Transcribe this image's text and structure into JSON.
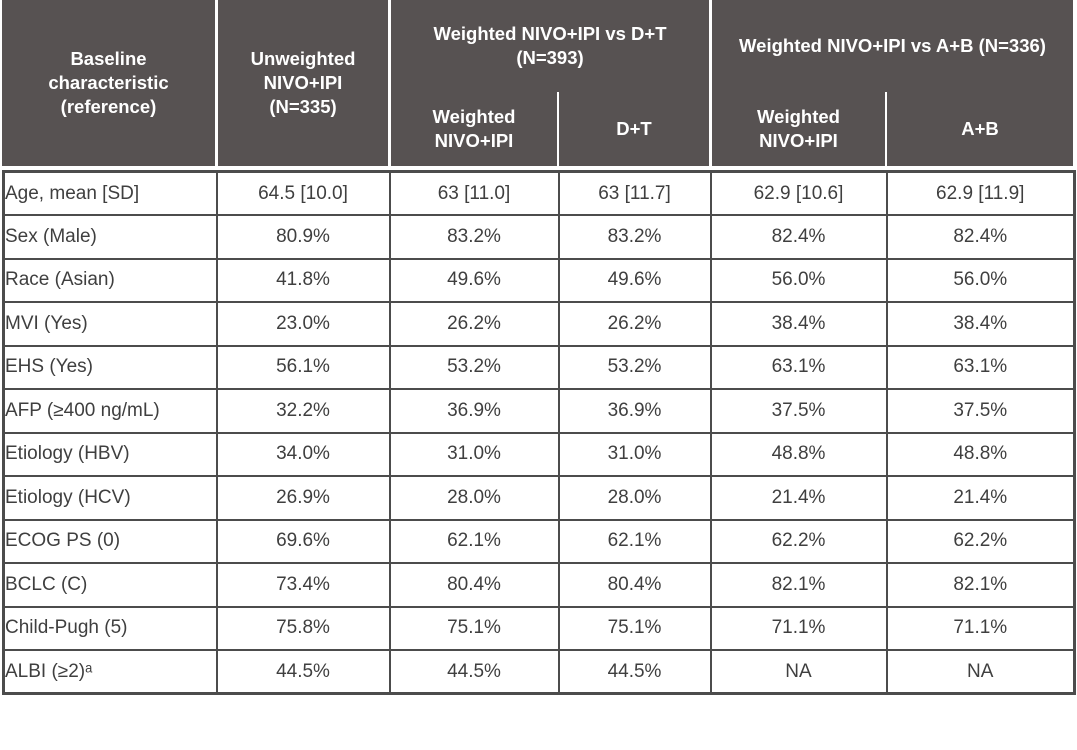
{
  "colors": {
    "header_bg": "#575252",
    "header_text": "#ffffff",
    "body_border": "#4c4c4c",
    "body_text": "#3f3f3f",
    "background": "#ffffff"
  },
  "table": {
    "columns": {
      "baseline": "Baseline characteristic (reference)",
      "unweighted": "Unweighted NIVO+IPI (N=335)",
      "group_dt": "Weighted NIVO+IPI vs D+T (N=393)",
      "group_ab": "Weighted NIVO+IPI vs A+B (N=336)",
      "sub_dt_weighted": "Weighted NIVO+IPI",
      "sub_dt": "D+T",
      "sub_ab_weighted": "Weighted NIVO+IPI",
      "sub_ab": "A+B"
    },
    "rows": [
      {
        "label": "Age, mean [SD]",
        "values": [
          "64.5 [10.0]",
          "63 [11.0]",
          "63 [11.7]",
          "62.9 [10.6]",
          "62.9 [11.9]"
        ]
      },
      {
        "label": "Sex (Male)",
        "values": [
          "80.9%",
          "83.2%",
          "83.2%",
          "82.4%",
          "82.4%"
        ]
      },
      {
        "label": "Race (Asian)",
        "values": [
          "41.8%",
          "49.6%",
          "49.6%",
          "56.0%",
          "56.0%"
        ]
      },
      {
        "label": "MVI (Yes)",
        "values": [
          "23.0%",
          "26.2%",
          "26.2%",
          "38.4%",
          "38.4%"
        ]
      },
      {
        "label": "EHS (Yes)",
        "values": [
          "56.1%",
          "53.2%",
          "53.2%",
          "63.1%",
          "63.1%"
        ]
      },
      {
        "label": "AFP (≥400 ng/mL)",
        "values": [
          "32.2%",
          "36.9%",
          "36.9%",
          "37.5%",
          "37.5%"
        ]
      },
      {
        "label": "Etiology (HBV)",
        "values": [
          "34.0%",
          "31.0%",
          "31.0%",
          "48.8%",
          "48.8%"
        ]
      },
      {
        "label": "Etiology (HCV)",
        "values": [
          "26.9%",
          "28.0%",
          "28.0%",
          "21.4%",
          "21.4%"
        ]
      },
      {
        "label": "ECOG PS (0)",
        "values": [
          "69.6%",
          "62.1%",
          "62.1%",
          "62.2%",
          "62.2%"
        ]
      },
      {
        "label": "BCLC (C)",
        "values": [
          "73.4%",
          "80.4%",
          "80.4%",
          "82.1%",
          "82.1%"
        ]
      },
      {
        "label": "Child-Pugh (5)",
        "values": [
          "75.8%",
          "75.1%",
          "75.1%",
          "71.1%",
          "71.1%"
        ]
      },
      {
        "label": "ALBI (≥2)ᵃ",
        "values": [
          "44.5%",
          "44.5%",
          "44.5%",
          "NA",
          "NA"
        ]
      }
    ]
  }
}
